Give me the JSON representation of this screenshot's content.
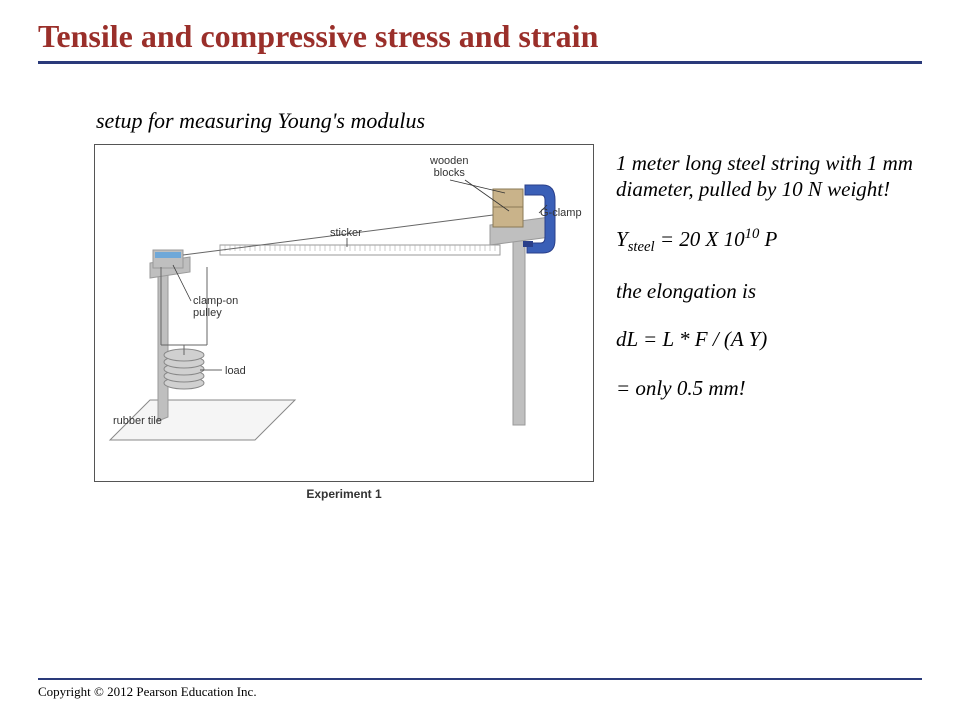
{
  "title": {
    "text": "Tensile and compressive stress and strain",
    "color": "#9a2f2a"
  },
  "rule_color": "#2a3a7a",
  "subtitle": "setup for measuring Young's modulus",
  "figure": {
    "caption": "Experiment 1",
    "labels": {
      "wooden_blocks": "wooden\nblocks",
      "gclamp": "G-clamp",
      "sticker": "sticker",
      "pulley": "clamp-on\npulley",
      "load": "load",
      "rubber_tile": "rubber tile"
    },
    "colors": {
      "metal": "#bfbfbf",
      "metal_dark": "#9a9a9a",
      "wood": "#c9b38a",
      "gclamp": "#3a5fb7",
      "gclamp_dark": "#2a3f8a",
      "pulley_band": "#6fa8d8",
      "wire": "#666666",
      "tile_fill": "#f5f5f5",
      "tile_edge": "#888888",
      "load_fill": "#d0d0d0",
      "leader": "#333333"
    }
  },
  "right": {
    "line1": "1 meter long steel string with 1 mm diameter, pulled by 10 N weight!",
    "line2_pre": "Y",
    "line2_sub": "steel",
    "line2_mid": " = 20 X 10",
    "line2_sup": "10",
    "line2_post": " P",
    "line3": "the elongation is",
    "line4": "dL = L * F / (A Y)",
    "line5": "= only 0.5 mm!"
  },
  "copyright": "Copyright © 2012 Pearson Education Inc."
}
